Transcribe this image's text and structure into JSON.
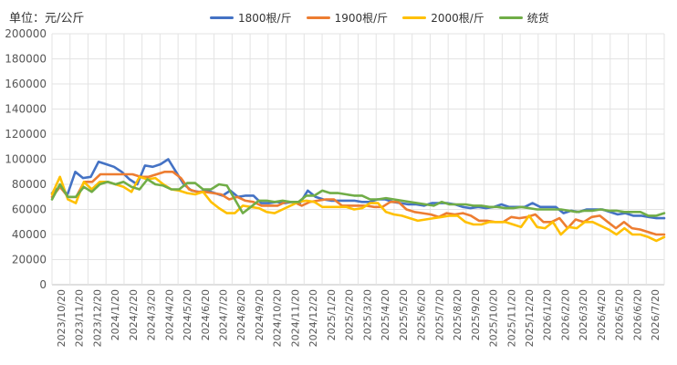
{
  "chart_data": {
    "type": "line",
    "title": "",
    "unit_label": "单位：元/公斤",
    "xlabel": "",
    "ylabel": "",
    "ylim": [
      0,
      200000
    ],
    "y_ticks": [
      0,
      20000,
      40000,
      60000,
      80000,
      100000,
      120000,
      140000,
      160000,
      180000,
      200000
    ],
    "grid": true,
    "legend_position": "top",
    "x_tick_labels": [
      "2023/10/20",
      "2023/11/20",
      "2023/12/20",
      "2024/1/20",
      "2024/2/20",
      "2024/3/20",
      "2024/4/20",
      "2024/5/20",
      "2024/6/20",
      "2024/7/20",
      "2024/8/20",
      "2024/9/20",
      "2024/10/20",
      "2024/11/20",
      "2024/12/20",
      "2025/1/20",
      "2025/2/20",
      "2025/3/20",
      "2025/4/20",
      "2025/5/20",
      "2025/6/20",
      "2025/7/20",
      "2025/8/20",
      "2025/9/20",
      "2025/10/20",
      "2025/11/20",
      "2025/12/20",
      "2026/1/20",
      "2026/2/20",
      "2026/3/20",
      "2026/4/20",
      "2026/5/20",
      "2026/6/20",
      "2026/7/20"
    ],
    "series": [
      {
        "name": "1800根/斤",
        "color": "#4472C4",
        "values": [
          73000,
          78000,
          72000,
          90000,
          85000,
          86000,
          98000,
          96000,
          94000,
          90000,
          84000,
          80000,
          95000,
          94000,
          96000,
          100000,
          90000,
          80000,
          75000,
          74000,
          75000,
          73000,
          71000,
          75000,
          70000,
          71000,
          71000,
          65000,
          65000,
          66000,
          65000,
          66000,
          65000,
          75000,
          70000,
          68000,
          67000,
          67000,
          67000,
          67000,
          66000,
          66000,
          68000,
          68000,
          66000,
          65000,
          64000,
          64000,
          63000,
          65000,
          65000,
          65000,
          64000,
          62000,
          61000,
          62000,
          61000,
          62000,
          64000,
          62000,
          62000,
          62000,
          65000,
          62000,
          62000,
          62000,
          57000,
          59000,
          58000,
          60000,
          60000,
          60000,
          58000,
          56000,
          57000,
          55000,
          55000,
          54000,
          53000,
          53000
        ]
      },
      {
        "name": "1900根/斤",
        "color": "#ED7D31",
        "values": [
          70000,
          78000,
          70000,
          70000,
          82000,
          82000,
          88000,
          88000,
          88000,
          88000,
          88000,
          86000,
          86000,
          88000,
          90000,
          90000,
          85000,
          76000,
          74000,
          74000,
          73000,
          72000,
          68000,
          70000,
          67000,
          66000,
          63000,
          63000,
          63000,
          66000,
          66000,
          63000,
          66000,
          67000,
          68000,
          68000,
          63000,
          63000,
          63000,
          63000,
          62000,
          62000,
          66000,
          66000,
          60000,
          58000,
          57000,
          56000,
          54000,
          57000,
          56000,
          57000,
          55000,
          51000,
          51000,
          50000,
          50000,
          54000,
          53000,
          54000,
          56000,
          50000,
          50000,
          53000,
          45000,
          52000,
          50000,
          54000,
          55000,
          50000,
          45000,
          50000,
          45000,
          44000,
          42000,
          40000,
          40000
        ]
      },
      {
        "name": "2000根/斤",
        "color": "#FFC000",
        "values": [
          72000,
          86000,
          68000,
          65000,
          82000,
          76000,
          82000,
          82000,
          80000,
          78000,
          74000,
          86000,
          84000,
          85000,
          80000,
          76000,
          75000,
          73000,
          72000,
          74000,
          66000,
          61000,
          57000,
          57000,
          63000,
          62000,
          61000,
          58000,
          57000,
          60000,
          63000,
          66000,
          67000,
          66000,
          62000,
          62000,
          62000,
          62000,
          60000,
          61000,
          65000,
          65000,
          58000,
          56000,
          55000,
          53000,
          51000,
          52000,
          53000,
          54000,
          55000,
          55000,
          50000,
          48000,
          48000,
          50000,
          50000,
          50000,
          48000,
          46000,
          55000,
          46000,
          45000,
          50000,
          40000,
          46000,
          45000,
          50000,
          50000,
          47000,
          44000,
          40000,
          45000,
          40000,
          40000,
          38000,
          35000,
          38000
        ]
      },
      {
        "name": "统货",
        "color": "#70AD47",
        "values": [
          68000,
          80000,
          70000,
          70000,
          78000,
          74000,
          80000,
          82000,
          80000,
          82000,
          78000,
          76000,
          84000,
          80000,
          79000,
          76000,
          76000,
          81000,
          81000,
          76000,
          76000,
          80000,
          79000,
          68000,
          57000,
          62000,
          67000,
          67000,
          66000,
          67000,
          66000,
          66000,
          71000,
          71000,
          75000,
          73000,
          73000,
          72000,
          71000,
          71000,
          68000,
          68000,
          69000,
          68000,
          67000,
          66000,
          65000,
          64000,
          63000,
          66000,
          64000,
          64000,
          64000,
          63000,
          63000,
          62000,
          62000,
          61000,
          61000,
          62000,
          61000,
          60000,
          60000,
          60000,
          60000,
          59000,
          58000,
          59000,
          59000,
          60000,
          59000,
          59000,
          58000,
          58000,
          58000,
          55000,
          55000,
          57000
        ]
      }
    ]
  }
}
